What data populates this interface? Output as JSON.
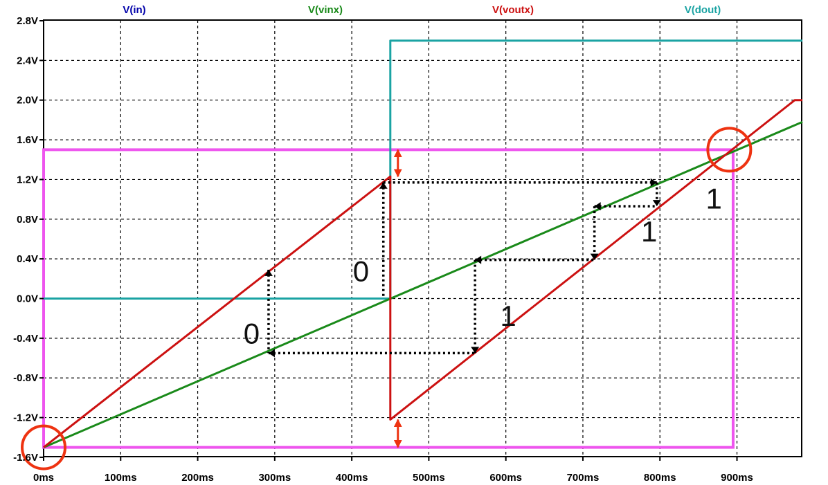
{
  "chart_data": {
    "type": "line",
    "x_tick_labels": [
      "0ms",
      "100ms",
      "200ms",
      "300ms",
      "400ms",
      "500ms",
      "600ms",
      "700ms",
      "800ms",
      "900ms"
    ],
    "y_tick_labels": [
      "2.8V",
      "2.4V",
      "2.0V",
      "1.6V",
      "1.2V",
      "0.8V",
      "0.4V",
      "0.0V",
      "-0.4V",
      "-0.8V",
      "-1.2V",
      "-1.6V"
    ],
    "xlim": [
      0,
      985
    ],
    "ylim": [
      -1.6,
      2.8
    ],
    "x_unit": "ms",
    "y_unit": "V",
    "grid": true,
    "series": [
      {
        "name": "V(in)",
        "color": "#0000aa",
        "x": [],
        "y": []
      },
      {
        "name": "V(vinx)",
        "color": "#1a8a1a",
        "x": [
          0,
          985
        ],
        "y": [
          -1.5,
          1.78
        ]
      },
      {
        "name": "V(voutx)",
        "color": "#cc1111",
        "x": [
          0,
          450,
          450,
          450,
          975,
          985
        ],
        "y": [
          -1.5,
          1.23,
          0.0,
          -1.22,
          2.0,
          2.0
        ]
      },
      {
        "name": "V(dout)",
        "color": "#1aa3a3",
        "x": [
          0,
          450,
          450,
          985
        ],
        "y": [
          0.0,
          0.0,
          2.6,
          2.6
        ]
      }
    ],
    "annotations": [
      {
        "text": "0",
        "x": 270,
        "y": -0.35
      },
      {
        "text": "0",
        "x": 412,
        "y": 0.28
      },
      {
        "text": "1",
        "x": 603,
        "y": -0.17
      },
      {
        "text": "1",
        "x": 786,
        "y": 0.68
      },
      {
        "text": "1",
        "x": 870,
        "y": 1.01
      }
    ],
    "highlight_box": {
      "x": [
        0,
        895
      ],
      "y": [
        -1.5,
        1.5
      ],
      "color": "#ee55ee"
    },
    "circles": [
      {
        "x": 0,
        "y": -1.5
      },
      {
        "x": 890,
        "y": 1.5
      }
    ],
    "circle_color": "#ee3311",
    "arrow_color": "#ee3311",
    "dotted_paths": [
      [
        [
          292,
          0.29
        ],
        [
          292,
          -0.55
        ]
      ],
      [
        [
          292,
          -0.55
        ],
        [
          560,
          -0.55
        ]
      ],
      [
        [
          560,
          0.39
        ],
        [
          560,
          -0.55
        ]
      ],
      [
        [
          560,
          0.39
        ],
        [
          715,
          0.39
        ]
      ],
      [
        [
          715,
          0.93
        ],
        [
          715,
          0.39
        ]
      ],
      [
        [
          715,
          0.93
        ],
        [
          796,
          0.93
        ]
      ],
      [
        [
          796,
          1.17
        ],
        [
          796,
          0.93
        ]
      ],
      [
        [
          441,
          1.17
        ],
        [
          796,
          1.17
        ]
      ],
      [
        [
          441,
          1.17
        ],
        [
          441,
          0.0
        ]
      ]
    ],
    "dotted_arrowheads": [
      {
        "x": 292,
        "y": 0.29,
        "dir": "up"
      },
      {
        "x": 292,
        "y": -0.55,
        "dir": "left"
      },
      {
        "x": 560,
        "y": -0.55,
        "dir": "down"
      },
      {
        "x": 560,
        "y": 0.39,
        "dir": "left"
      },
      {
        "x": 715,
        "y": 0.39,
        "dir": "down"
      },
      {
        "x": 715,
        "y": 0.93,
        "dir": "left"
      },
      {
        "x": 796,
        "y": 0.93,
        "dir": "down"
      },
      {
        "x": 796,
        "y": 1.17,
        "dir": "right"
      },
      {
        "x": 441,
        "y": 1.17,
        "dir": "up"
      }
    ],
    "red_double_arrows": [
      {
        "x": 450,
        "y1": 1.23,
        "y2": 1.5
      },
      {
        "x": 450,
        "y1": -1.22,
        "y2": -1.5
      }
    ]
  }
}
